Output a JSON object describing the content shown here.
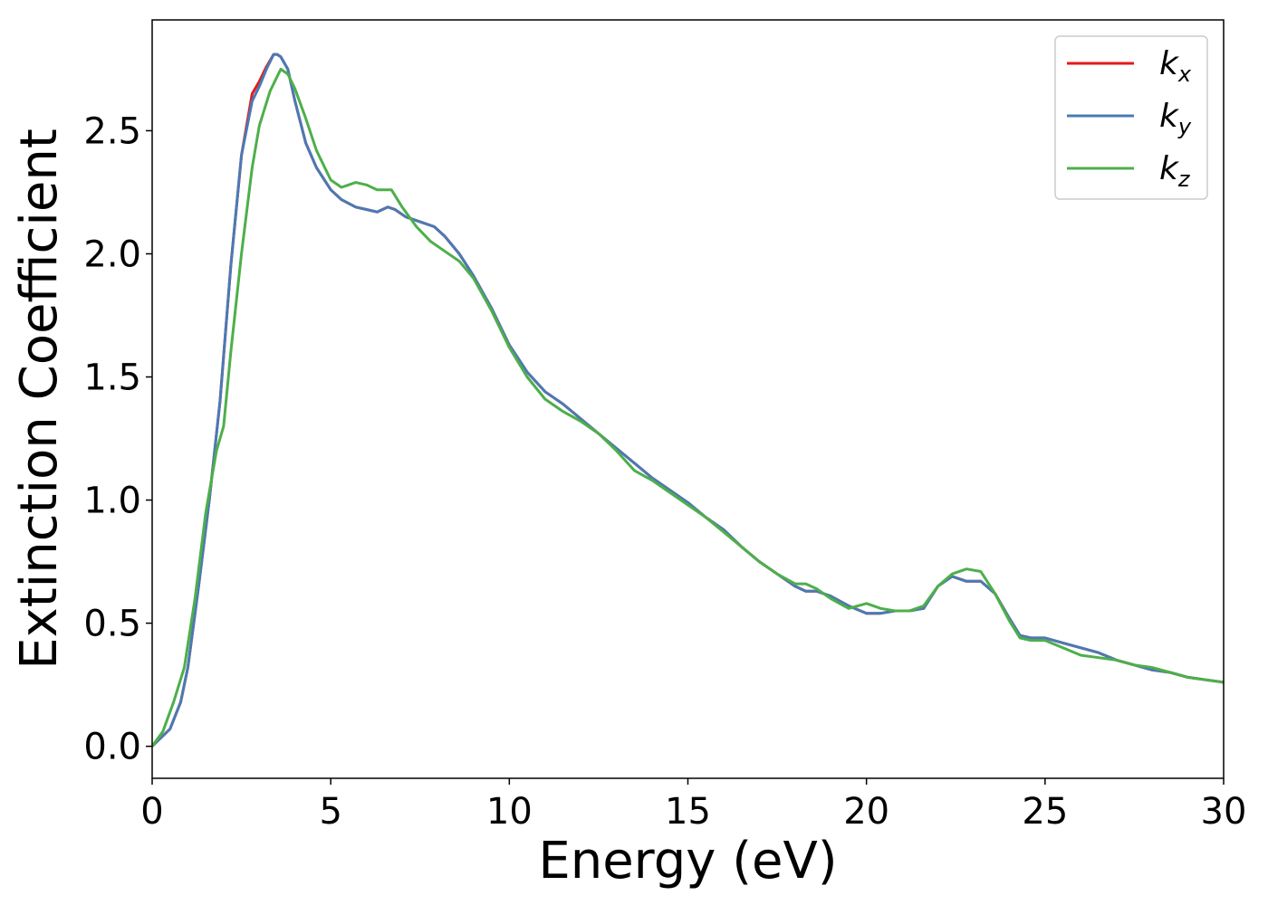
{
  "chart_data": {
    "type": "line",
    "title": "",
    "xlabel": "Energy (eV)",
    "ylabel": "Extinction Coefficient",
    "xlim": [
      0,
      30
    ],
    "ylim": [
      -0.13,
      2.95
    ],
    "xticks": [
      0,
      5,
      10,
      15,
      20,
      25,
      30
    ],
    "yticks": [
      0.0,
      0.5,
      1.0,
      1.5,
      2.0,
      2.5
    ],
    "xtick_labels": [
      "0",
      "5",
      "10",
      "15",
      "20",
      "25",
      "30"
    ],
    "ytick_labels": [
      "0.0",
      "0.5",
      "1.0",
      "1.5",
      "2.0",
      "2.5"
    ],
    "grid": false,
    "legend_placement": "top-right",
    "series": [
      {
        "name": "k_x",
        "label_base": "k",
        "label_sub": "x",
        "color": "#e41a1c",
        "x": [
          0,
          0.5,
          0.8,
          1.0,
          1.3,
          1.6,
          1.9,
          2.2,
          2.5,
          2.8,
          3.0,
          3.2,
          3.4,
          3.5,
          3.6,
          3.8,
          4.0,
          4.3,
          4.6,
          5.0,
          5.3,
          5.7,
          6.0,
          6.3,
          6.6,
          6.8,
          7.1,
          7.5,
          7.9,
          8.2,
          8.6,
          9.0,
          9.5,
          10.0,
          10.5,
          11.0,
          11.5,
          12.0,
          12.5,
          13.0,
          13.5,
          14.0,
          14.5,
          15.0,
          15.5,
          16.0,
          16.5,
          17.0,
          17.5,
          18.0,
          18.3,
          18.6,
          19.0,
          19.5,
          20.0,
          20.4,
          20.8,
          21.2,
          21.6,
          22.0,
          22.4,
          22.8,
          23.2,
          23.6,
          24.0,
          24.3,
          24.6,
          25.0,
          25.5,
          26.0,
          26.5,
          27.0,
          27.5,
          28.0,
          28.5,
          29.0,
          29.5,
          30.0
        ],
        "y": [
          0.0,
          0.07,
          0.18,
          0.32,
          0.65,
          1.0,
          1.4,
          1.95,
          2.4,
          2.65,
          2.7,
          2.76,
          2.81,
          2.81,
          2.8,
          2.75,
          2.62,
          2.45,
          2.35,
          2.26,
          2.22,
          2.19,
          2.18,
          2.17,
          2.19,
          2.18,
          2.15,
          2.13,
          2.11,
          2.07,
          2.0,
          1.91,
          1.78,
          1.63,
          1.52,
          1.44,
          1.39,
          1.33,
          1.27,
          1.21,
          1.15,
          1.09,
          1.04,
          0.99,
          0.93,
          0.88,
          0.81,
          0.75,
          0.7,
          0.65,
          0.63,
          0.63,
          0.61,
          0.57,
          0.54,
          0.54,
          0.55,
          0.55,
          0.56,
          0.65,
          0.69,
          0.67,
          0.67,
          0.62,
          0.52,
          0.45,
          0.44,
          0.44,
          0.42,
          0.4,
          0.38,
          0.35,
          0.33,
          0.31,
          0.3,
          0.28,
          0.27,
          0.26
        ]
      },
      {
        "name": "k_y",
        "label_base": "k",
        "label_sub": "y",
        "color": "#4a7ab5",
        "x": [
          0,
          0.5,
          0.8,
          1.0,
          1.3,
          1.6,
          1.9,
          2.2,
          2.5,
          2.8,
          3.0,
          3.2,
          3.4,
          3.5,
          3.6,
          3.8,
          4.0,
          4.3,
          4.6,
          5.0,
          5.3,
          5.7,
          6.0,
          6.3,
          6.6,
          6.8,
          7.1,
          7.5,
          7.9,
          8.2,
          8.6,
          9.0,
          9.5,
          10.0,
          10.5,
          11.0,
          11.5,
          12.0,
          12.5,
          13.0,
          13.5,
          14.0,
          14.5,
          15.0,
          15.5,
          16.0,
          16.5,
          17.0,
          17.5,
          18.0,
          18.3,
          18.6,
          19.0,
          19.5,
          20.0,
          20.4,
          20.8,
          21.2,
          21.6,
          22.0,
          22.4,
          22.8,
          23.2,
          23.6,
          24.0,
          24.3,
          24.6,
          25.0,
          25.5,
          26.0,
          26.5,
          27.0,
          27.5,
          28.0,
          28.5,
          29.0,
          29.5,
          30.0
        ],
        "y": [
          0.0,
          0.07,
          0.18,
          0.32,
          0.65,
          1.0,
          1.4,
          1.95,
          2.4,
          2.62,
          2.68,
          2.75,
          2.81,
          2.81,
          2.8,
          2.75,
          2.62,
          2.45,
          2.35,
          2.26,
          2.22,
          2.19,
          2.18,
          2.17,
          2.19,
          2.18,
          2.15,
          2.13,
          2.11,
          2.07,
          2.0,
          1.91,
          1.78,
          1.63,
          1.52,
          1.44,
          1.39,
          1.33,
          1.27,
          1.21,
          1.15,
          1.09,
          1.04,
          0.99,
          0.93,
          0.88,
          0.81,
          0.75,
          0.7,
          0.65,
          0.63,
          0.63,
          0.61,
          0.57,
          0.54,
          0.54,
          0.55,
          0.55,
          0.56,
          0.65,
          0.69,
          0.67,
          0.67,
          0.62,
          0.52,
          0.45,
          0.44,
          0.44,
          0.42,
          0.4,
          0.38,
          0.35,
          0.33,
          0.31,
          0.3,
          0.28,
          0.27,
          0.26
        ]
      },
      {
        "name": "k_z",
        "label_base": "k",
        "label_sub": "z",
        "color": "#4daf4a",
        "x": [
          0,
          0.3,
          0.6,
          0.9,
          1.2,
          1.5,
          1.8,
          2.0,
          2.2,
          2.5,
          2.8,
          3.0,
          3.3,
          3.6,
          3.8,
          4.0,
          4.3,
          4.6,
          5.0,
          5.3,
          5.7,
          6.0,
          6.3,
          6.7,
          7.0,
          7.4,
          7.8,
          8.2,
          8.6,
          9.0,
          9.5,
          10.0,
          10.5,
          11.0,
          11.5,
          12.0,
          12.5,
          13.0,
          13.5,
          14.0,
          14.5,
          15.0,
          15.5,
          16.0,
          16.5,
          17.0,
          17.5,
          18.0,
          18.3,
          18.6,
          19.0,
          19.5,
          20.0,
          20.4,
          20.8,
          21.2,
          21.6,
          22.0,
          22.4,
          22.8,
          23.2,
          23.6,
          24.0,
          24.3,
          24.6,
          25.0,
          25.5,
          26.0,
          26.5,
          27.0,
          27.5,
          28.0,
          28.5,
          29.0,
          29.5,
          30.0
        ],
        "y": [
          0.0,
          0.06,
          0.18,
          0.32,
          0.6,
          0.95,
          1.2,
          1.3,
          1.6,
          2.0,
          2.35,
          2.52,
          2.66,
          2.75,
          2.73,
          2.67,
          2.55,
          2.42,
          2.3,
          2.27,
          2.29,
          2.28,
          2.26,
          2.26,
          2.19,
          2.11,
          2.05,
          2.01,
          1.97,
          1.9,
          1.77,
          1.62,
          1.5,
          1.41,
          1.36,
          1.32,
          1.27,
          1.2,
          1.12,
          1.08,
          1.03,
          0.98,
          0.93,
          0.87,
          0.81,
          0.75,
          0.7,
          0.66,
          0.66,
          0.64,
          0.6,
          0.56,
          0.58,
          0.56,
          0.55,
          0.55,
          0.57,
          0.65,
          0.7,
          0.72,
          0.71,
          0.62,
          0.51,
          0.44,
          0.43,
          0.43,
          0.4,
          0.37,
          0.36,
          0.35,
          0.33,
          0.32,
          0.3,
          0.28,
          0.27,
          0.26
        ]
      }
    ]
  }
}
